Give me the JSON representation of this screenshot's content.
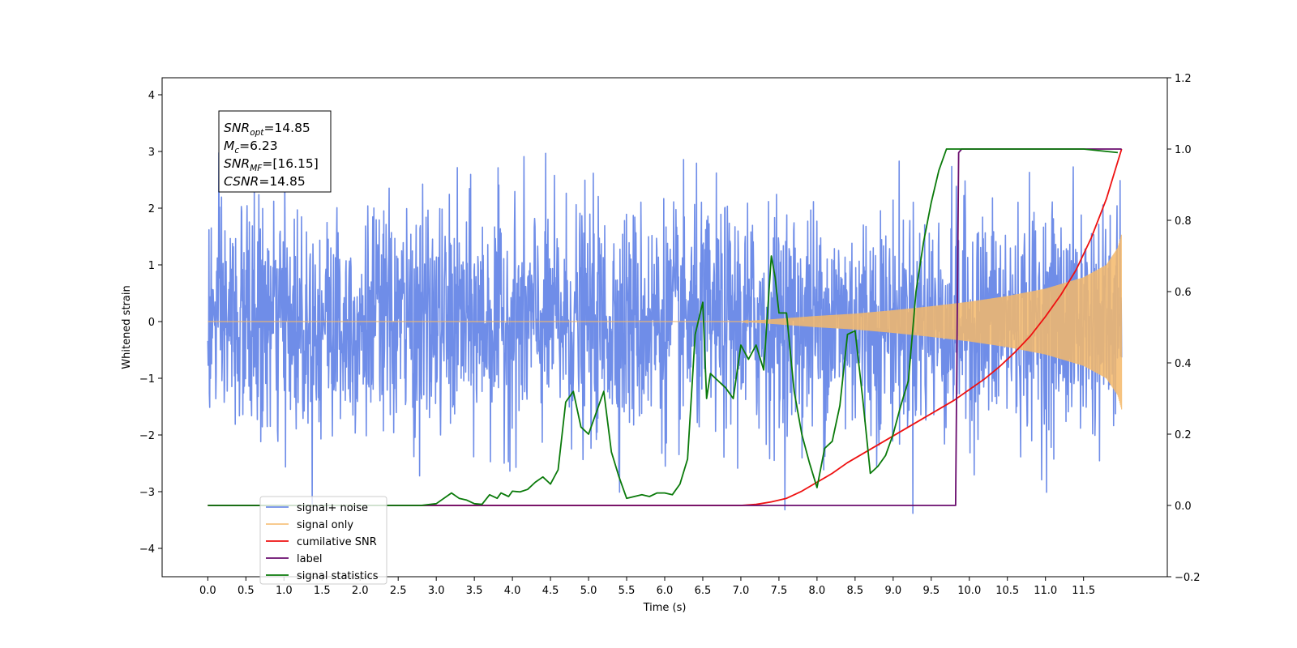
{
  "chart_data": {
    "type": "line",
    "xlabel": "Time (s)",
    "ylabel": "Whitened strain",
    "xlim": [
      -0.6,
      12.6
    ],
    "ylim_left": [
      -4.5,
      4.3
    ],
    "ylim_right": [
      -0.2,
      1.2
    ],
    "x_ticks": [
      0.0,
      0.5,
      1.0,
      1.5,
      2.0,
      2.5,
      3.0,
      3.5,
      4.0,
      4.5,
      5.0,
      5.5,
      6.0,
      6.5,
      7.0,
      7.5,
      8.0,
      8.5,
      9.0,
      9.5,
      10.0,
      10.5,
      11.0,
      11.5
    ],
    "x_tick_labels": [
      "0.0",
      "0.5",
      "1.0",
      "1.5",
      "2.0",
      "2.5",
      "3.0",
      "3.5",
      "4.0",
      "4.5",
      "5.0",
      "5.5",
      "6.0",
      "6.5",
      "7.0",
      "7.5",
      "8.0",
      "8.5",
      "9.0",
      "9.5",
      "10.0",
      "10.5",
      "11.0",
      "11.5"
    ],
    "y_ticks_left": [
      -4,
      -3,
      -2,
      -1,
      0,
      1,
      2,
      3,
      4
    ],
    "y_tick_labels_left": [
      "−4",
      "−3",
      "−2",
      "−1",
      "0",
      "1",
      "2",
      "3",
      "4"
    ],
    "y_ticks_right": [
      -0.2,
      0.0,
      0.2,
      0.4,
      0.6,
      0.8,
      1.0,
      1.2
    ],
    "y_tick_labels_right": [
      "−0.2",
      "0.0",
      "0.2",
      "0.4",
      "0.6",
      "0.8",
      "1.0",
      "1.2"
    ],
    "legend_position": "lower-left",
    "grid": false,
    "annotation": {
      "lines": [
        {
          "main": "SNR",
          "sub": "opt",
          "rest": "=14.85"
        },
        {
          "main": "M",
          "sub": "c",
          "rest": "=6.23"
        },
        {
          "main": "SNR",
          "sub": "MF",
          "rest": "=[16.15]"
        },
        {
          "main": "CSNR",
          "sub": "",
          "rest": "=14.85"
        }
      ]
    },
    "series": [
      {
        "name": "signal+ noise",
        "axis": "left",
        "color": "#6f8de8",
        "style": "noise",
        "x_range": [
          0.0,
          12.0
        ],
        "rms": 1.0,
        "min": -4.1,
        "max": 3.93
      },
      {
        "name": "signal only",
        "axis": "left",
        "color": "#f5b86a",
        "style": "chirp",
        "x_range": [
          0.0,
          12.0
        ],
        "envelope": {
          "x": [
            0.0,
            7.0,
            7.5,
            8.0,
            8.5,
            9.0,
            9.5,
            10.0,
            10.5,
            11.0,
            11.5,
            11.8,
            11.95,
            12.0
          ],
          "amp": [
            0.0,
            0.0,
            0.05,
            0.1,
            0.14,
            0.2,
            0.27,
            0.35,
            0.45,
            0.58,
            0.78,
            1.0,
            1.3,
            1.55
          ]
        }
      },
      {
        "name": "cumilative SNR",
        "axis": "right",
        "color": "#ee1111",
        "style": "line",
        "x": [
          0.0,
          6.5,
          7.0,
          7.2,
          7.4,
          7.6,
          7.8,
          8.0,
          8.2,
          8.4,
          8.6,
          8.8,
          9.0,
          9.2,
          9.4,
          9.6,
          9.8,
          10.0,
          10.2,
          10.4,
          10.6,
          10.8,
          11.0,
          11.2,
          11.4,
          11.6,
          11.8,
          11.9,
          12.0
        ],
        "y": [
          0.0,
          0.0,
          0.0,
          0.003,
          0.01,
          0.02,
          0.04,
          0.065,
          0.09,
          0.12,
          0.145,
          0.17,
          0.195,
          0.22,
          0.245,
          0.27,
          0.295,
          0.325,
          0.355,
          0.39,
          0.43,
          0.475,
          0.53,
          0.59,
          0.66,
          0.75,
          0.86,
          0.93,
          1.0
        ]
      },
      {
        "name": "label",
        "axis": "right",
        "color": "#6a0d6e",
        "style": "line",
        "x": [
          0.0,
          9.82,
          9.86,
          9.9,
          12.0
        ],
        "y": [
          0.0,
          0.0,
          0.99,
          1.0,
          1.0
        ]
      },
      {
        "name": "signal statistics",
        "axis": "right",
        "color": "#0a7a0a",
        "style": "line",
        "x": [
          0.0,
          2.8,
          3.0,
          3.2,
          3.3,
          3.4,
          3.5,
          3.6,
          3.7,
          3.8,
          3.85,
          3.95,
          4.0,
          4.1,
          4.2,
          4.3,
          4.4,
          4.5,
          4.6,
          4.7,
          4.8,
          4.9,
          5.0,
          5.1,
          5.2,
          5.3,
          5.4,
          5.5,
          5.6,
          5.7,
          5.8,
          5.9,
          6.0,
          6.1,
          6.2,
          6.3,
          6.4,
          6.5,
          6.55,
          6.6,
          6.7,
          6.8,
          6.9,
          7.0,
          7.1,
          7.2,
          7.3,
          7.4,
          7.45,
          7.5,
          7.6,
          7.7,
          7.8,
          7.9,
          8.0,
          8.1,
          8.2,
          8.3,
          8.4,
          8.5,
          8.6,
          8.7,
          8.8,
          8.9,
          9.0,
          9.1,
          9.2,
          9.3,
          9.4,
          9.5,
          9.6,
          9.7,
          9.8,
          9.9,
          10.0,
          10.5,
          11.0,
          11.5,
          11.95
        ],
        "y": [
          0.0,
          0.0,
          0.005,
          0.035,
          0.02,
          0.015,
          0.005,
          0.003,
          0.03,
          0.02,
          0.035,
          0.025,
          0.04,
          0.038,
          0.045,
          0.065,
          0.08,
          0.06,
          0.1,
          0.29,
          0.32,
          0.22,
          0.2,
          0.26,
          0.32,
          0.15,
          0.08,
          0.02,
          0.025,
          0.03,
          0.025,
          0.035,
          0.035,
          0.03,
          0.06,
          0.13,
          0.48,
          0.57,
          0.3,
          0.37,
          0.35,
          0.33,
          0.3,
          0.45,
          0.41,
          0.45,
          0.38,
          0.7,
          0.64,
          0.54,
          0.54,
          0.32,
          0.2,
          0.12,
          0.05,
          0.16,
          0.18,
          0.28,
          0.48,
          0.49,
          0.3,
          0.09,
          0.11,
          0.14,
          0.2,
          0.28,
          0.35,
          0.6,
          0.74,
          0.85,
          0.94,
          1.0,
          1.0,
          1.0,
          1.0,
          1.0,
          1.0,
          1.0,
          0.99
        ]
      }
    ]
  }
}
